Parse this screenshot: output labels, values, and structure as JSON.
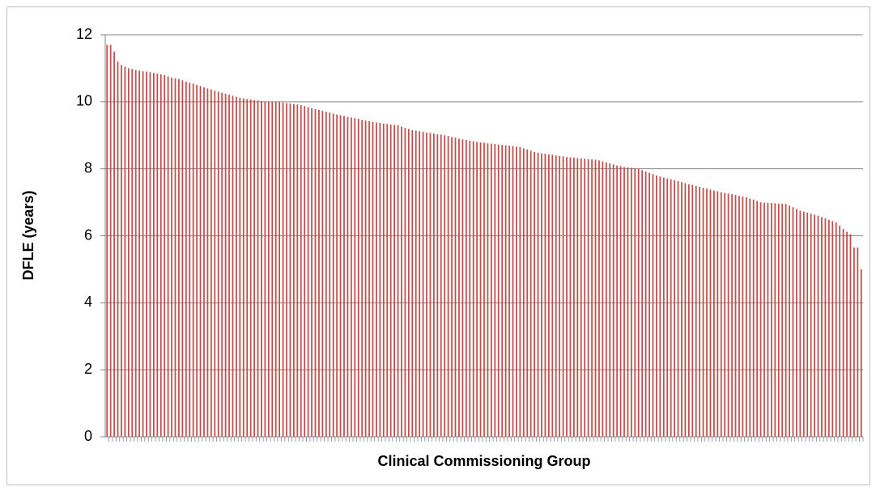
{
  "chart_data": {
    "type": "bar",
    "x_label": "Clinical Commissioning Group",
    "y_label": "DFLE (years)",
    "color": "#c0504d",
    "grid": true,
    "ylim": [
      0,
      12
    ],
    "yticks": [
      0,
      2,
      4,
      6,
      8,
      10,
      12
    ],
    "categories": [
      null,
      null,
      null,
      null,
      null,
      null,
      null,
      null,
      null,
      null,
      null,
      null,
      null,
      null,
      null,
      null,
      null,
      null,
      null,
      null,
      null,
      null,
      null,
      null,
      null,
      null,
      null,
      null,
      null,
      null,
      null,
      null,
      null,
      null,
      null,
      null,
      null,
      null,
      null,
      null,
      null,
      null,
      null,
      null,
      null,
      null,
      null,
      null,
      null,
      null,
      null,
      null,
      null,
      null,
      null,
      null,
      null,
      null,
      null,
      null,
      null,
      null,
      null,
      null,
      null,
      null,
      null,
      null,
      null,
      null,
      null,
      null,
      null,
      null,
      null,
      null,
      null,
      null,
      null,
      null,
      null,
      null,
      null,
      null,
      null,
      null,
      null,
      null,
      null,
      null,
      null,
      null,
      null,
      null,
      null,
      null,
      null,
      null,
      null,
      null,
      null,
      null,
      null,
      null,
      null,
      null,
      null,
      null,
      null,
      null,
      null,
      null,
      null,
      null,
      null,
      null,
      null,
      null,
      null,
      null,
      null,
      null,
      null,
      null,
      null,
      null,
      null,
      null,
      null,
      null,
      null,
      null,
      null,
      null,
      null,
      null,
      null,
      null,
      null,
      null,
      null,
      null,
      null,
      null,
      null,
      null,
      null,
      null,
      null,
      null,
      null,
      null,
      null,
      null,
      null,
      null,
      null,
      null,
      null,
      null,
      null,
      null,
      null,
      null,
      null,
      null,
      null,
      null,
      null,
      null,
      null,
      null,
      null,
      null,
      null,
      null,
      null,
      null,
      null,
      null,
      null,
      null,
      null,
      null,
      null,
      null,
      null,
      null,
      null,
      null,
      null,
      null,
      null,
      null,
      null,
      null,
      null,
      null,
      null,
      null,
      null,
      null,
      null,
      null,
      null,
      null,
      null,
      null,
      null,
      null,
      null
    ],
    "values": [
      11.7,
      11.7,
      11.5,
      11.2,
      11.1,
      11.05,
      11.0,
      10.98,
      10.95,
      10.93,
      10.91,
      10.9,
      10.88,
      10.86,
      10.84,
      10.82,
      10.8,
      10.76,
      10.72,
      10.7,
      10.68,
      10.64,
      10.6,
      10.57,
      10.54,
      10.5,
      10.47,
      10.43,
      10.4,
      10.37,
      10.33,
      10.3,
      10.27,
      10.24,
      10.21,
      10.18,
      10.15,
      10.12,
      10.1,
      10.08,
      10.07,
      10.05,
      10.04,
      10.02,
      10.01,
      10.0,
      10.0,
      10.0,
      9.99,
      9.98,
      9.96,
      9.95,
      9.93,
      9.92,
      9.9,
      9.87,
      9.84,
      9.81,
      9.78,
      9.76,
      9.73,
      9.7,
      9.68,
      9.65,
      9.62,
      9.6,
      9.58,
      9.55,
      9.53,
      9.51,
      9.49,
      9.46,
      9.44,
      9.42,
      9.4,
      9.38,
      9.37,
      9.35,
      9.34,
      9.32,
      9.31,
      9.3,
      9.26,
      9.22,
      9.19,
      9.15,
      9.14,
      9.12,
      9.1,
      9.08,
      9.07,
      9.05,
      9.03,
      9.02,
      9.0,
      8.98,
      8.95,
      8.93,
      8.9,
      8.88,
      8.86,
      8.84,
      8.82,
      8.8,
      8.79,
      8.78,
      8.76,
      8.75,
      8.74,
      8.72,
      8.71,
      8.7,
      8.69,
      8.68,
      8.66,
      8.65,
      8.61,
      8.58,
      8.54,
      8.5,
      8.48,
      8.46,
      8.45,
      8.43,
      8.42,
      8.4,
      8.38,
      8.37,
      8.35,
      8.34,
      8.33,
      8.32,
      8.31,
      8.3,
      8.29,
      8.28,
      8.27,
      8.25,
      8.22,
      8.19,
      8.16,
      8.13,
      8.1,
      8.08,
      8.05,
      8.04,
      8.03,
      8.01,
      8.0,
      7.96,
      7.92,
      7.88,
      7.84,
      7.8,
      7.77,
      7.74,
      7.71,
      7.69,
      7.66,
      7.63,
      7.6,
      7.57,
      7.54,
      7.52,
      7.49,
      7.46,
      7.43,
      7.41,
      7.38,
      7.35,
      7.33,
      7.3,
      7.28,
      7.26,
      7.24,
      7.22,
      7.19,
      7.17,
      7.15,
      7.11,
      7.08,
      7.04,
      7.0,
      6.99,
      6.98,
      6.98,
      6.97,
      6.96,
      6.96,
      6.95,
      6.9,
      6.85,
      6.8,
      6.75,
      6.72,
      6.69,
      6.66,
      6.63,
      6.6,
      6.56,
      6.52,
      6.48,
      6.44,
      6.4,
      6.3,
      6.2,
      6.12,
      6.05,
      5.65,
      5.65,
      5.0
    ]
  }
}
